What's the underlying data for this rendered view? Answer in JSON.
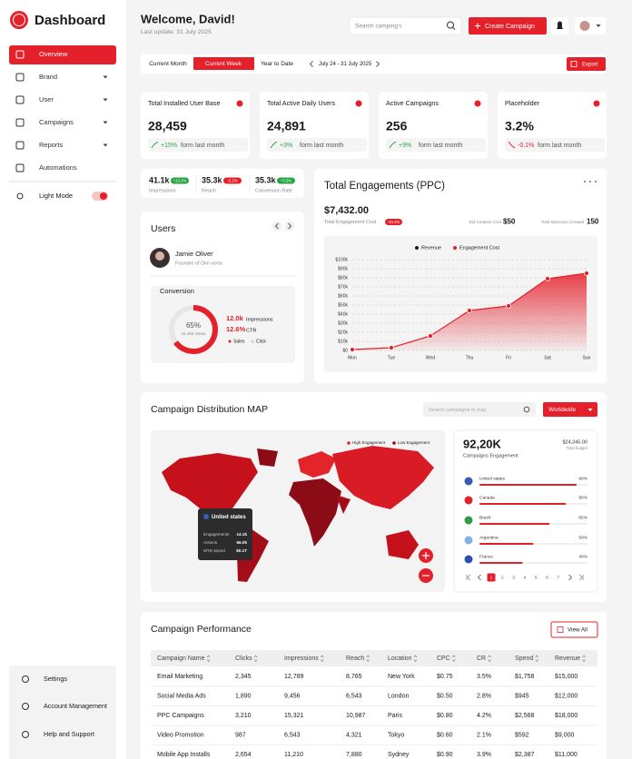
{
  "sidebar": {
    "brand": "Dashboard",
    "nav": [
      "Overview",
      "Brand",
      "User",
      "Campaigns",
      "Reports",
      "Automations"
    ],
    "light_mode": "Light Mode",
    "bottom": [
      "Settings",
      "Account Management",
      "Help and Support"
    ]
  },
  "header": {
    "welcome": "Welcome, David!",
    "updated": "Last update: 31 July 2025",
    "search": "Search camping's",
    "create": "Create Campaign"
  },
  "toolbar": {
    "tabs": [
      "Current Month",
      "Current Week",
      "Year to Date"
    ],
    "range": "July 24 - 31 July 2025",
    "export": "Export"
  },
  "kpis": [
    {
      "label": "Total Installed User Base",
      "value": "28,459",
      "change": "+15%",
      "note": "form last month"
    },
    {
      "label": "Total Active Daily Users",
      "value": "24,891",
      "change": "+3%",
      "note": "form last month"
    },
    {
      "label": "Active Campaigns",
      "value": "256",
      "change": "+9%",
      "note": "form last month"
    },
    {
      "label": "Placeholder",
      "value": "3.2%",
      "change": "-0.1%",
      "note": "form last month"
    }
  ],
  "mini_stats": [
    {
      "value": "41.1k",
      "badge": "+13.2%",
      "label": "Impressions"
    },
    {
      "value": "35.3k",
      "badge": "-5.2%",
      "label": "Reach"
    },
    {
      "value": "35.3k",
      "badge": "+3.3%",
      "label": "Conversion Rate"
    }
  ],
  "users": {
    "title": "Users",
    "name": "Jamie Oliver",
    "role": "Founder of Dim vorta",
    "conversion": {
      "title": "Conversion",
      "value": 65,
      "value_label": "65%",
      "views": "15,455 Views",
      "impressions": "12.0k",
      "impressions_label": "Impressions",
      "ctr": "12.6%",
      "ctr_label": "CTR",
      "legend": [
        "Sales",
        "Click"
      ]
    }
  },
  "engagements": {
    "title": "Total Engagements (PPC)",
    "total": "$7,432.00",
    "total_label": "Total Engagement Cost",
    "badge": "-10.2%",
    "bid_label": "Bid Creation Cost",
    "bid": "$50",
    "created_label": "Total Maccaine Created",
    "created": "150",
    "chart": {
      "type": "line",
      "categories": [
        "Mon",
        "Tue",
        "Wed",
        "Thu",
        "Fri",
        "Sat",
        "Sun"
      ],
      "series": [
        {
          "name": "Revenue",
          "color": "#1a1a1a",
          "values": [
            null,
            null,
            null,
            null,
            null,
            null,
            null
          ]
        },
        {
          "name": "Engagement Cost",
          "color": "#e4202a",
          "values": [
            1000,
            3000,
            16000,
            44000,
            49000,
            79000,
            85000
          ]
        }
      ],
      "ylim": [
        0,
        100000
      ],
      "yticks": [
        {
          "value": 0,
          "label": "$0"
        },
        {
          "value": 10000,
          "label": "$10k"
        },
        {
          "value": 20000,
          "label": "$20k"
        },
        {
          "value": 30000,
          "label": "$30k"
        },
        {
          "value": 40000,
          "label": "$40k"
        },
        {
          "value": 50000,
          "label": "$50k"
        },
        {
          "value": 60000,
          "label": "$60k"
        },
        {
          "value": 70000,
          "label": "$70k"
        },
        {
          "value": 80000,
          "label": "$80k"
        },
        {
          "value": 90000,
          "label": "$90k"
        },
        {
          "value": 100000,
          "label": "$100k"
        }
      ],
      "grid": true
    }
  },
  "map": {
    "title": "Campaign Distribution MAP",
    "search": "Search campaigns in map",
    "region": "Worldwide",
    "legend": [
      "High Engagement",
      "Low Engagement"
    ],
    "tooltip": {
      "country": "United states",
      "rows": [
        [
          "Engagements",
          "14.1k"
        ],
        [
          "Actions",
          "66.0k"
        ],
        [
          "MTD spend",
          "$0.1T"
        ]
      ]
    },
    "total": "92,20K",
    "total_label": "Campaigns Engagement",
    "budget": "$24,345.00",
    "budget_label": "Total budget",
    "countries": [
      {
        "name": "United states",
        "value": 90,
        "label": "90%"
      },
      {
        "name": "Canada",
        "value": 80,
        "label": "80%"
      },
      {
        "name": "Brazil",
        "value": 65,
        "label": "65%"
      },
      {
        "name": "Argentina",
        "value": 50,
        "label": "50%"
      },
      {
        "name": "France",
        "value": 40,
        "label": "40%"
      }
    ],
    "pages": [
      1,
      2,
      3,
      4,
      5,
      6,
      7
    ]
  },
  "table": {
    "title": "Campaign Performance",
    "view_all": "View All",
    "headers": [
      "Campaign Name",
      "Clicks",
      "Impressions",
      "Reach",
      "Location",
      "CPC",
      "CR",
      "Spend",
      "Revenue"
    ],
    "rows": [
      [
        "Email Marketing",
        "2,345",
        "12,789",
        "8,765",
        "New York",
        "$0.75",
        "3.5%",
        "$1,758",
        "$15,000"
      ],
      [
        "Social Media Ads",
        "1,890",
        "9,456",
        "6,543",
        "London",
        "$0.50",
        "2.8%",
        "$945",
        "$12,000"
      ],
      [
        "PPC Campaigns",
        "3,210",
        "15,321",
        "10,987",
        "Paris",
        "$0.80",
        "4.2%",
        "$2,568",
        "$18,000"
      ],
      [
        "Video Promotion",
        "987",
        "6,543",
        "4,321",
        "Tokyo",
        "$0.60",
        "2.1%",
        "$592",
        "$9,000"
      ],
      [
        "Mobile App Installs",
        "2,654",
        "11,210",
        "7,880",
        "Sydney",
        "$0.90",
        "3.9%",
        "$2,387",
        "$11,000"
      ]
    ]
  }
}
